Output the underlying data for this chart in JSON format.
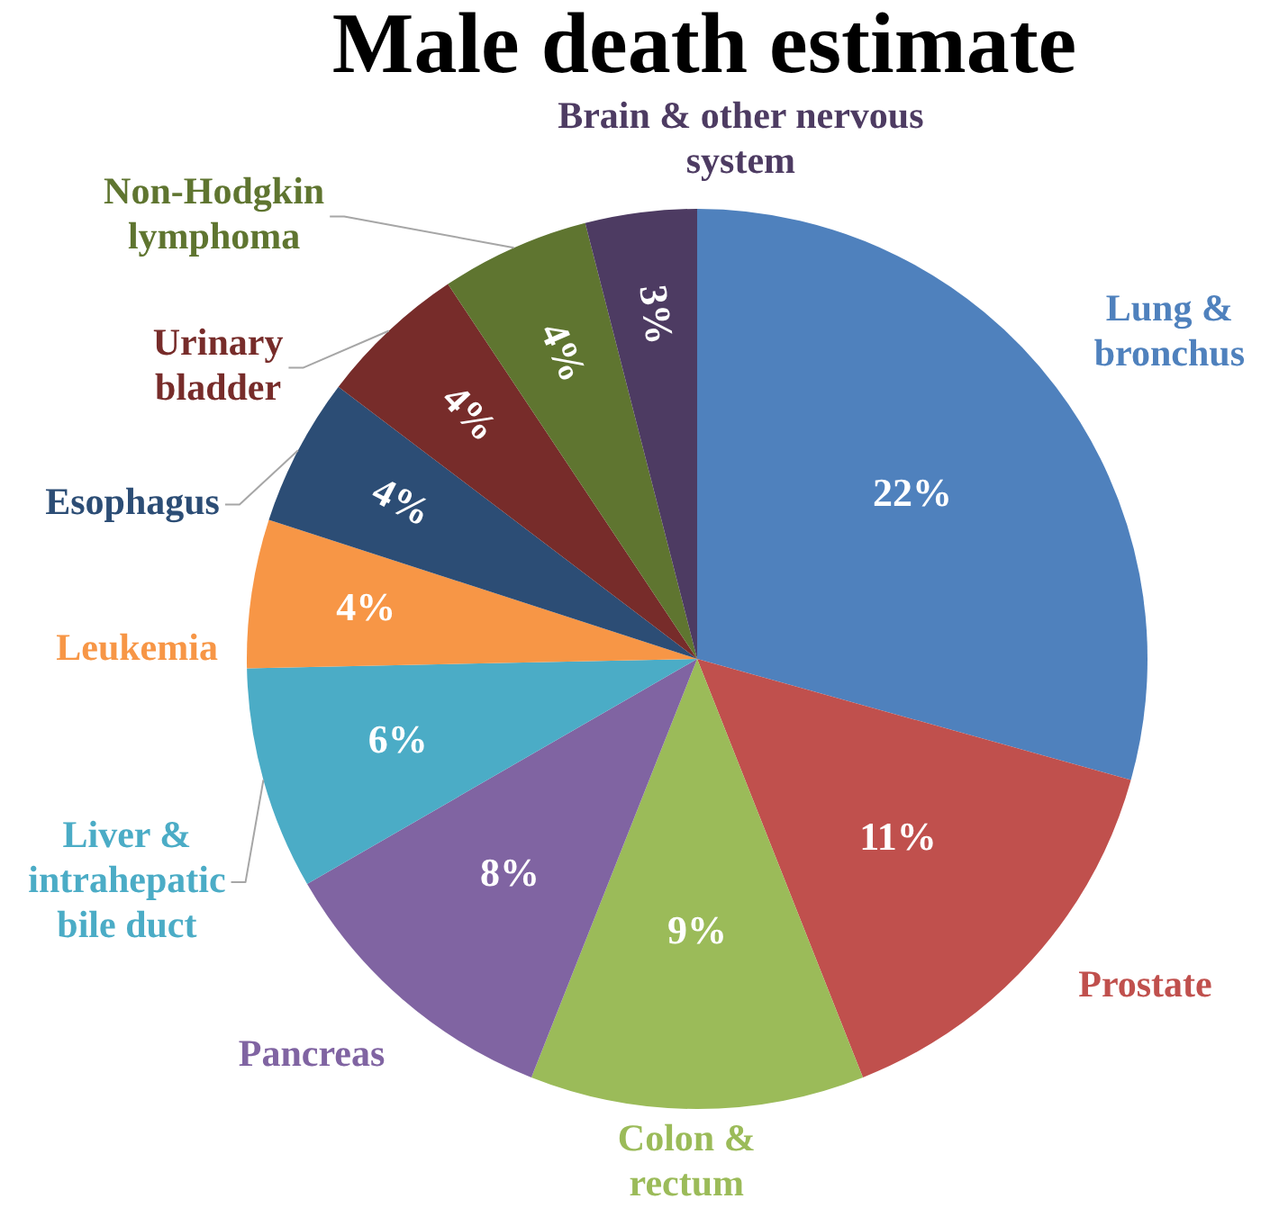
{
  "chart_data": {
    "type": "pie",
    "title": "Male death estimate",
    "categories": [
      "Lung & bronchus",
      "Prostate",
      "Colon & rectum",
      "Pancreas",
      "Liver & intrahepatic bile duct",
      "Leukemia",
      "Esophagus",
      "Urinary bladder",
      "Non-Hodgkin lymphoma",
      "Brain & other nervous system"
    ],
    "values": [
      22,
      11,
      9,
      8,
      6,
      4,
      4,
      4,
      4,
      3
    ],
    "value_labels": [
      "22%",
      "11%",
      "9%",
      "8%",
      "6%",
      "4%",
      "4%",
      "4%",
      "4%",
      "3%"
    ],
    "colors": [
      "#4f81bd",
      "#c0504d",
      "#9bbb59",
      "#8064a2",
      "#4bacc6",
      "#f79646",
      "#2c4d75",
      "#772c2a",
      "#5f7530",
      "#4d3b62"
    ]
  }
}
